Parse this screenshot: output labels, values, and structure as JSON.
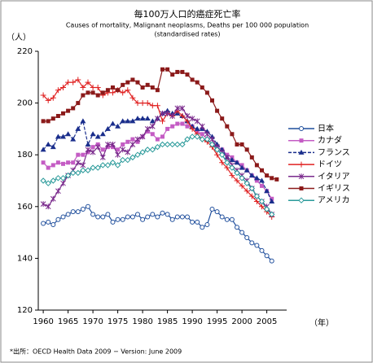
{
  "chart_data": {
    "type": "line",
    "title": "毎100万人口的癌症死亡率",
    "subtitle": "Causes of mortality, Malignant neoplasms, Deaths per 100 000 population",
    "subtitle2": "(standardised rates)",
    "y_label": "（人）",
    "x_label": "（年）",
    "source": "*出所：OECD Health Data 2009 − Version: June 2009",
    "legend": "right",
    "x": [
      1960,
      1961,
      1962,
      1963,
      1964,
      1965,
      1966,
      1967,
      1968,
      1969,
      1970,
      1971,
      1972,
      1973,
      1974,
      1975,
      1976,
      1977,
      1978,
      1979,
      1980,
      1981,
      1982,
      1983,
      1984,
      1985,
      1986,
      1987,
      1988,
      1989,
      1990,
      1991,
      1992,
      1993,
      1994,
      1995,
      1996,
      1997,
      1998,
      1999,
      2000,
      2001,
      2002,
      2003,
      2004,
      2005,
      2006,
      2007
    ],
    "xlim": [
      1959,
      2009
    ],
    "xticks": [
      1960,
      1965,
      1970,
      1975,
      1980,
      1985,
      1990,
      1995,
      2000,
      2005
    ],
    "ylim": [
      120,
      220
    ],
    "yticks": [
      120,
      140,
      160,
      180,
      200,
      220
    ],
    "series": [
      {
        "name": "日本",
        "color": "#1f4e9c",
        "marker": "circle",
        "dash": false,
        "values": [
          153.5,
          154,
          153,
          155,
          156,
          157,
          158,
          158,
          159,
          160,
          157,
          156,
          156,
          157,
          154,
          155,
          155,
          156,
          156,
          157,
          155,
          156,
          157,
          156,
          157.5,
          157,
          155,
          156,
          156,
          156,
          154,
          154,
          152,
          153,
          159,
          158,
          156,
          155,
          155,
          152,
          150,
          148,
          146,
          145,
          143,
          141,
          139,
          null
        ]
      },
      {
        "name": "カナダ",
        "color": "#c45cc4",
        "marker": "square",
        "dash": false,
        "values": [
          177,
          175,
          176,
          177,
          176.5,
          177,
          177,
          180,
          180,
          181,
          183,
          184,
          182,
          183,
          183,
          182,
          184,
          185,
          186,
          185,
          187,
          189,
          188,
          186,
          187,
          190,
          191,
          192,
          192,
          191,
          191,
          189,
          188,
          186,
          184,
          183,
          182,
          180,
          179,
          177,
          176,
          174,
          172,
          170,
          168,
          166,
          163,
          null
        ]
      },
      {
        "name": "フランス",
        "color": "#1a2e8c",
        "marker": "triangle",
        "dash": true,
        "values": [
          182,
          184,
          183,
          187,
          187,
          188,
          186,
          190,
          193,
          184,
          188,
          187,
          188,
          190,
          192,
          191,
          193,
          193,
          193,
          194,
          194,
          194,
          193,
          194,
          196,
          197,
          196,
          196,
          195,
          193,
          191,
          190,
          190,
          189,
          187,
          184,
          182,
          179,
          178,
          177,
          175,
          174,
          172,
          171,
          170,
          166,
          162,
          null
        ]
      },
      {
        "name": "ドイツ",
        "color": "#e02020",
        "marker": "plus",
        "dash": false,
        "values": [
          203,
          201,
          202,
          205,
          206,
          208,
          208,
          209,
          206,
          208,
          206,
          206,
          203,
          204,
          204,
          205,
          204,
          205,
          202,
          200,
          200,
          200,
          199,
          199,
          193,
          196,
          195,
          197,
          195,
          193,
          190,
          188,
          186,
          185,
          183,
          180,
          177,
          175,
          172,
          170,
          168,
          166,
          164,
          162,
          160,
          158,
          156,
          null
        ]
      },
      {
        "name": "イタリア",
        "color": "#7a2a8c",
        "marker": "star",
        "dash": false,
        "values": [
          161,
          160,
          163,
          166,
          169,
          172,
          174,
          177,
          176,
          182,
          181,
          183,
          179,
          184,
          184,
          180,
          182,
          181,
          184,
          186,
          187,
          190,
          191,
          194,
          196,
          196,
          195,
          198,
          198,
          195,
          194,
          193,
          191,
          188,
          186,
          183,
          181,
          179,
          176,
          174,
          172,
          170,
          167,
          164,
          162,
          160,
          157,
          null
        ]
      },
      {
        "name": "イギリス",
        "color": "#8b1a1a",
        "marker": "square",
        "dash": false,
        "values": [
          193,
          193,
          194,
          195,
          196,
          197,
          198,
          200,
          203,
          204,
          204,
          203,
          204,
          205,
          206,
          205,
          207,
          208,
          209,
          208,
          206,
          207,
          206,
          205,
          213,
          213,
          211,
          212,
          212,
          211,
          209,
          208,
          206,
          204,
          201,
          197,
          194,
          191,
          188,
          184,
          184,
          182,
          179,
          176,
          174,
          172,
          171,
          170.5
        ]
      },
      {
        "name": "アメリカ",
        "color": "#2a9a9a",
        "marker": "diamond",
        "dash": false,
        "values": [
          170,
          169,
          170,
          171,
          171,
          172,
          173,
          173,
          174,
          174,
          175,
          175,
          176,
          176,
          177,
          176,
          178,
          178,
          179,
          180,
          181,
          182,
          182,
          183,
          184,
          184,
          184,
          184,
          184,
          186,
          187,
          187,
          186,
          186,
          184,
          182,
          180,
          177,
          175,
          173,
          171,
          169,
          167,
          164,
          162,
          159,
          157,
          null
        ]
      }
    ]
  }
}
